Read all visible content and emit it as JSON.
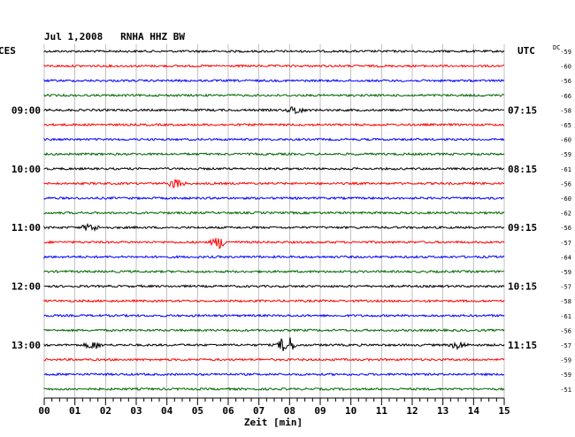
{
  "chart_data": {
    "type": "line",
    "title": "Jul 1,2008   RNHA HHZ BW",
    "left_tz": "CES",
    "right_tz": "UTC",
    "dc_label": "DC",
    "xlabel": "Zeit [min]",
    "xlim": [
      0,
      15
    ],
    "x_ticks": [
      "00",
      "01",
      "02",
      "03",
      "04",
      "05",
      "06",
      "07",
      "08",
      "09",
      "10",
      "11",
      "12",
      "13",
      "14",
      "15"
    ],
    "left_hour_labels": [
      {
        "trace": 4,
        "label": "09:00"
      },
      {
        "trace": 8,
        "label": "10:00"
      },
      {
        "trace": 12,
        "label": "11:00"
      },
      {
        "trace": 16,
        "label": "12:00"
      },
      {
        "trace": 20,
        "label": "13:00"
      }
    ],
    "right_hour_labels": [
      {
        "trace": 4,
        "label": "07:15"
      },
      {
        "trace": 8,
        "label": "08:15"
      },
      {
        "trace": 12,
        "label": "09:15"
      },
      {
        "trace": 16,
        "label": "10:15"
      },
      {
        "trace": 20,
        "label": "11:15"
      }
    ],
    "trace_colors": [
      "#000000",
      "#ff0000",
      "#0000ff",
      "#006600"
    ],
    "dc_values": [
      -59,
      -60,
      -56,
      -66,
      -58,
      -65,
      -60,
      -59,
      -61,
      -56,
      -60,
      -62,
      -56,
      -57,
      -64,
      -59,
      -57,
      -58,
      -61,
      -56,
      -57,
      -59,
      -59,
      -51
    ],
    "events": [
      {
        "trace": 4,
        "minute": 8.2,
        "amp": 1.6
      },
      {
        "trace": 9,
        "minute": 4.3,
        "amp": 1.8
      },
      {
        "trace": 12,
        "minute": 1.5,
        "amp": 1.5
      },
      {
        "trace": 13,
        "minute": 5.7,
        "amp": 2.2
      },
      {
        "trace": 20,
        "minute": 1.6,
        "amp": 1.5
      },
      {
        "trace": 20,
        "minute": 7.9,
        "amp": 4.0
      },
      {
        "trace": 20,
        "minute": 13.5,
        "amp": 1.5
      }
    ],
    "grid": true
  }
}
